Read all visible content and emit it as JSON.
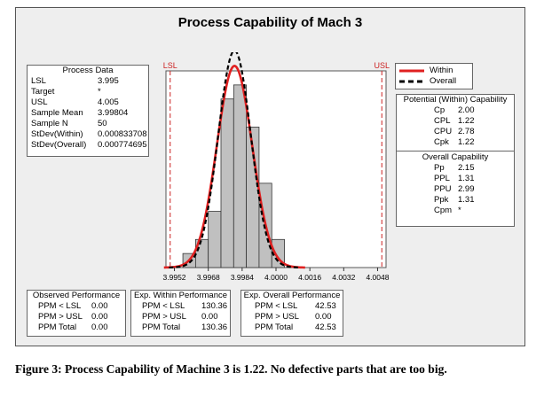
{
  "title": "Process Capability of Mach 3",
  "caption": "Figure 3:  Process Capability of Machine 3 is 1.22.  No defective parts that are too big.",
  "process_data": {
    "heading": "Process Data",
    "rows": [
      {
        "label": "LSL",
        "value": "3.995"
      },
      {
        "label": "Target",
        "value": "*"
      },
      {
        "label": "USL",
        "value": "4.005"
      },
      {
        "label": "Sample Mean",
        "value": "3.99804"
      },
      {
        "label": "Sample N",
        "value": "50"
      },
      {
        "label": "StDev(Within)",
        "value": "0.000833708"
      },
      {
        "label": "StDev(Overall)",
        "value": "0.000774695"
      }
    ]
  },
  "legend": {
    "items": [
      {
        "label": "Within",
        "color": "#e02020",
        "style": "solid"
      },
      {
        "label": "Overall",
        "color": "#000000",
        "style": "dashed"
      }
    ]
  },
  "within_capability": {
    "heading": "Potential (Within) Capability",
    "rows": [
      {
        "label": "Cp",
        "value": "2.00"
      },
      {
        "label": "CPL",
        "value": "1.22"
      },
      {
        "label": "CPU",
        "value": "2.78"
      },
      {
        "label": "Cpk",
        "value": "1.22"
      }
    ]
  },
  "overall_capability": {
    "heading": "Overall Capability",
    "rows": [
      {
        "label": "Pp",
        "value": "2.15"
      },
      {
        "label": "PPL",
        "value": "1.31"
      },
      {
        "label": "PPU",
        "value": "2.99"
      },
      {
        "label": "Ppk",
        "value": "1.31"
      },
      {
        "label": "Cpm",
        "value": "*"
      }
    ]
  },
  "observed_performance": {
    "heading": "Observed Performance",
    "rows": [
      {
        "label": "PPM < LSL",
        "value": "0.00"
      },
      {
        "label": "PPM > USL",
        "value": "0.00"
      },
      {
        "label": "PPM Total",
        "value": "0.00"
      }
    ]
  },
  "exp_within_performance": {
    "heading": "Exp. Within Performance",
    "rows": [
      {
        "label": "PPM < LSL",
        "value": "130.36"
      },
      {
        "label": "PPM > USL",
        "value": "0.00"
      },
      {
        "label": "PPM Total",
        "value": "130.36"
      }
    ]
  },
  "exp_overall_performance": {
    "heading": "Exp. Overall Performance",
    "rows": [
      {
        "label": "PPM < LSL",
        "value": "42.53"
      },
      {
        "label": "PPM > USL",
        "value": "0.00"
      },
      {
        "label": "PPM Total",
        "value": "42.53"
      }
    ]
  },
  "chart_data": {
    "type": "histogram",
    "title": "Process Capability of Mach 3",
    "xlim": [
      3.9948,
      4.0052
    ],
    "ylim": [
      0,
      14
    ],
    "x_ticks": [
      3.9952,
      3.9968,
      3.9984,
      4.0,
      4.0016,
      4.0032,
      4.0048
    ],
    "x_tick_labels": [
      "3.9952",
      "3.9968",
      "3.9984",
      "4.0000",
      "4.0016",
      "4.0032",
      "4.0048"
    ],
    "spec_limits": [
      {
        "name": "LSL",
        "value": 3.995,
        "color": "#cc2222"
      },
      {
        "name": "USL",
        "value": 4.005,
        "color": "#cc2222"
      }
    ],
    "bins": [
      {
        "start": 3.9956,
        "end": 3.9962,
        "count": 1
      },
      {
        "start": 3.9962,
        "end": 3.9968,
        "count": 2
      },
      {
        "start": 3.9968,
        "end": 3.9974,
        "count": 4
      },
      {
        "start": 3.9974,
        "end": 3.998,
        "count": 12
      },
      {
        "start": 3.998,
        "end": 3.9986,
        "count": 13
      },
      {
        "start": 3.9986,
        "end": 3.9992,
        "count": 10
      },
      {
        "start": 3.9992,
        "end": 3.9998,
        "count": 6
      },
      {
        "start": 3.9998,
        "end": 4.0004,
        "count": 2
      }
    ],
    "bar_color": "#c0c0c0",
    "curves": [
      {
        "name": "Within",
        "mean": 3.99804,
        "stdev": 0.000833708,
        "color": "#e02020",
        "style": "solid"
      },
      {
        "name": "Overall",
        "mean": 3.99804,
        "stdev": 0.000774695,
        "color": "#000000",
        "style": "dashed"
      }
    ],
    "sample_n": 50
  }
}
